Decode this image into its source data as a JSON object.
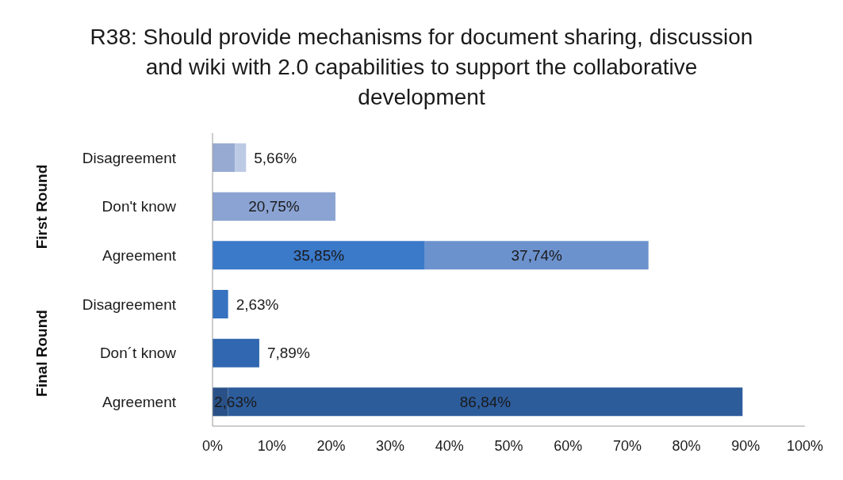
{
  "chart_data": {
    "type": "bar",
    "orientation": "horizontal",
    "stacked": true,
    "title": "R38: Should provide mechanisms for document sharing, discussion and wiki with 2.0 capabilities to support the collaborative development",
    "categories": [
      "Disagreement",
      "Don't know",
      "Agreement",
      "Disagreement",
      "Don´t know",
      "Agreement"
    ],
    "series": [
      {
        "values": [
          3.77,
          20.75,
          35.85,
          2.63,
          7.89,
          2.63
        ],
        "colors": [
          "#97aad2",
          "#8ba3d2",
          "#3b79c9",
          "#3672c0",
          "#3067b0",
          "#2a5187"
        ],
        "value_labels": [
          null,
          "20,75%",
          "35,85%",
          "2,63%",
          "7,89%",
          "2,63%"
        ]
      },
      {
        "values": [
          1.89,
          null,
          37.74,
          null,
          null,
          86.84
        ],
        "colors": [
          "#bccae4",
          null,
          "#6c92ce",
          null,
          null,
          "#2d5c9b"
        ],
        "value_labels": [
          null,
          null,
          "37,74%",
          null,
          null,
          "86,84%"
        ]
      }
    ],
    "totals": [
      "5,66%",
      null,
      null,
      null,
      null,
      null
    ],
    "annotations": [
      "First Round",
      "Final Round"
    ],
    "xlim": [
      0,
      100
    ],
    "xticks": [
      {
        "value": 0,
        "label": "0%"
      },
      {
        "value": 10,
        "label": "10%"
      },
      {
        "value": 20,
        "label": "20%"
      },
      {
        "value": 30,
        "label": "30%"
      },
      {
        "value": 40,
        "label": "40%"
      },
      {
        "value": 50,
        "label": "50%"
      },
      {
        "value": 60,
        "label": "60%"
      },
      {
        "value": 70,
        "label": "70%"
      },
      {
        "value": 80,
        "label": "80%"
      },
      {
        "value": 90,
        "label": "90%"
      },
      {
        "value": 100,
        "label": "100%"
      }
    ],
    "grid": false,
    "legend": false
  }
}
